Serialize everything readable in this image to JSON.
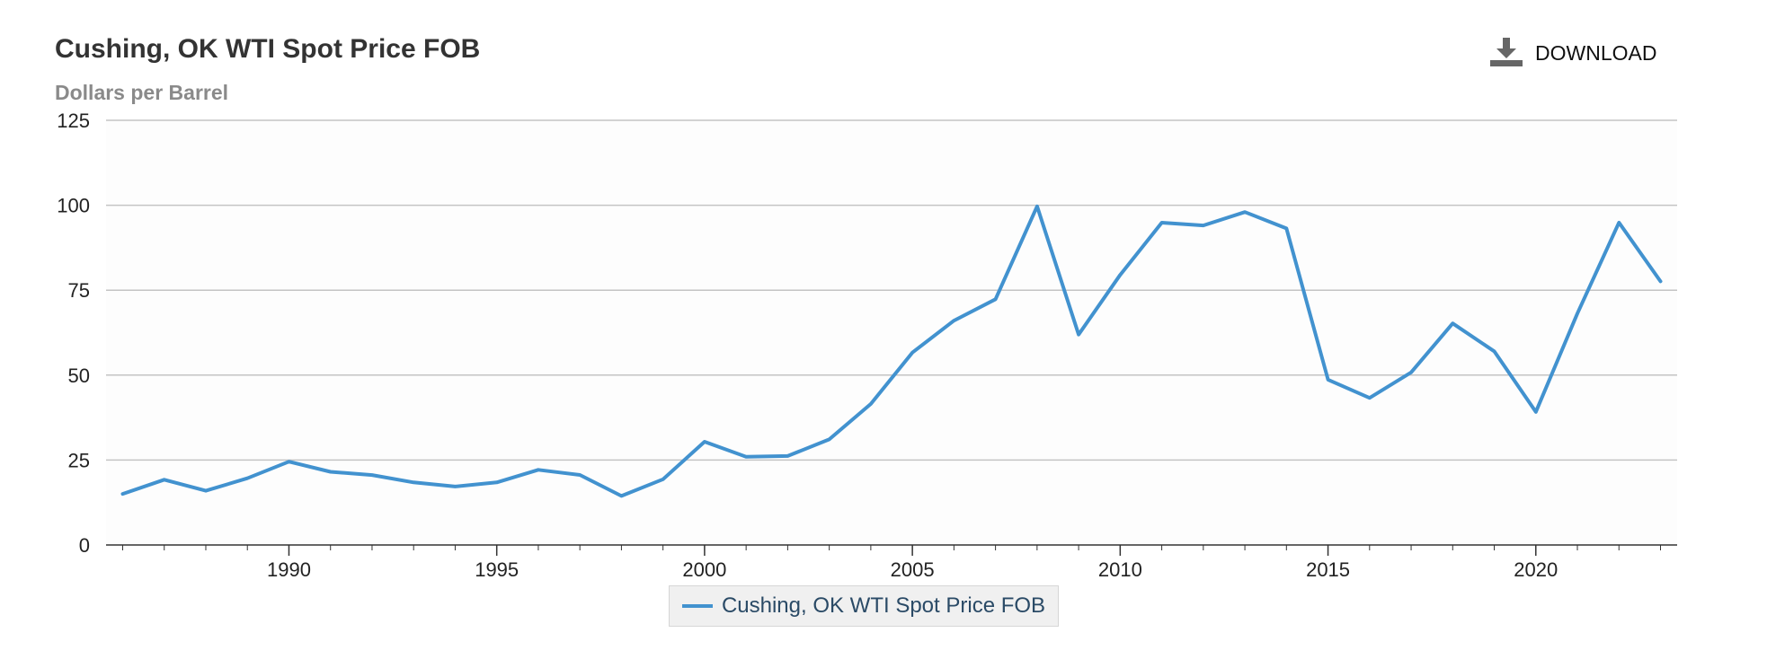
{
  "header": {
    "title": "Cushing, OK WTI Spot Price FOB",
    "subtitle": "Dollars per Barrel"
  },
  "toolbar": {
    "download_label": "DOWNLOAD",
    "download_icon": "download-icon"
  },
  "colors": {
    "series": "#4292cf",
    "grid": "#c4c4c4",
    "axis": "#333333",
    "plot_bg": "#fdfdfd"
  },
  "chart_data": {
    "type": "line",
    "title": "Cushing, OK WTI Spot Price FOB",
    "subtitle": "Dollars per Barrel",
    "xlabel": "",
    "ylabel": "",
    "xlim": [
      1985.6,
      2023.4
    ],
    "ylim": [
      0,
      125
    ],
    "yticks": [
      0,
      25,
      50,
      75,
      100,
      125
    ],
    "xticks": [
      1990,
      1995,
      2000,
      2005,
      2010,
      2015,
      2020
    ],
    "grid": true,
    "legend": "bottom-center",
    "x": [
      1986,
      1987,
      1988,
      1989,
      1990,
      1991,
      1992,
      1993,
      1994,
      1995,
      1996,
      1997,
      1998,
      1999,
      2000,
      2001,
      2002,
      2003,
      2004,
      2005,
      2006,
      2007,
      2008,
      2009,
      2010,
      2011,
      2012,
      2013,
      2014,
      2015,
      2016,
      2017,
      2018,
      2019,
      2020,
      2021,
      2022,
      2023
    ],
    "series": [
      {
        "name": "Cushing, OK WTI Spot Price FOB",
        "values": [
          15.05,
          19.2,
          15.97,
          19.64,
          24.53,
          21.54,
          20.58,
          18.43,
          17.2,
          18.43,
          22.12,
          20.61,
          14.42,
          19.35,
          30.38,
          25.98,
          26.18,
          31.08,
          41.51,
          56.64,
          66.05,
          72.34,
          99.67,
          61.95,
          79.48,
          94.88,
          94.05,
          97.98,
          93.17,
          48.66,
          43.29,
          50.8,
          65.23,
          56.99,
          39.16,
          68.14,
          94.9,
          77.58
        ]
      }
    ]
  }
}
